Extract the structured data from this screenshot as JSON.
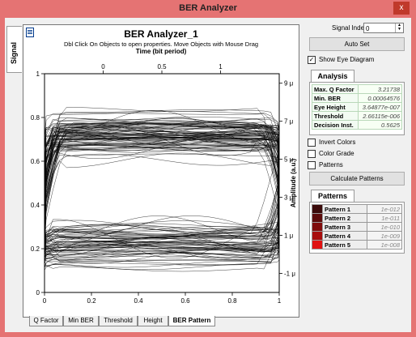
{
  "window": {
    "title": "BER Analyzer",
    "close_glyph": "x"
  },
  "side_tab": {
    "label": "Signal"
  },
  "plot": {
    "title": "BER Analyzer_1",
    "subtitle": "Dbl Click On Objects to open properties.  Move Objects with Mouse Drag",
    "top_axis_label": "Time (bit period)",
    "right_axis_label": "Amplitude (a.u.)",
    "top_ticks": [
      "0",
      "0.5",
      "1"
    ],
    "bottom_ticks": [
      "0",
      "0.2",
      "0.4",
      "0.6",
      "0.8",
      "1"
    ],
    "left_ticks": [
      "0",
      "0.2",
      "0.4",
      "0.6",
      "0.8",
      "1"
    ],
    "right_ticks": [
      "-1 μ",
      "1 μ",
      "3 μ",
      "5 μ",
      "7 μ",
      "9 μ"
    ],
    "trace_color": "#000000"
  },
  "bottom_tabs": [
    {
      "label": "Q Factor",
      "active": false
    },
    {
      "label": "Min BER",
      "active": false
    },
    {
      "label": "Threshold",
      "active": false
    },
    {
      "label": "Height",
      "active": false
    },
    {
      "label": "BER Pattern",
      "active": true
    }
  ],
  "controls": {
    "signal_index_label": "Signal Index",
    "signal_index_value": "0",
    "auto_set_label": "Auto Set",
    "show_eye_label": "Show Eye Diagram",
    "show_eye_checked": true
  },
  "analysis": {
    "tab_label": "Analysis",
    "rows": [
      {
        "key": "Max. Q Factor",
        "value": "3.21738"
      },
      {
        "key": "Min. BER",
        "value": "0.00064576"
      },
      {
        "key": "Eye Height",
        "value": "3.64877e-007"
      },
      {
        "key": "Threshold",
        "value": "2.66115e-006"
      },
      {
        "key": "Decision Inst.",
        "value": "0.5625"
      }
    ]
  },
  "options": {
    "invert_colors_label": "Invert Colors",
    "color_grade_label": "Color Grade",
    "patterns_label": "Patterns",
    "calculate_label": "Calculate Patterns"
  },
  "patterns": {
    "tab_label": "Patterns",
    "rows": [
      {
        "key": "Pattern 1",
        "value": "1e-012",
        "color": "#3b0a0a"
      },
      {
        "key": "Pattern 2",
        "value": "1e-011",
        "color": "#5c0b0b"
      },
      {
        "key": "Pattern 3",
        "value": "1e-010",
        "color": "#800c0c"
      },
      {
        "key": "Pattern 4",
        "value": "1e-009",
        "color": "#a80d0d"
      },
      {
        "key": "Pattern 5",
        "value": "1e-008",
        "color": "#e01010"
      }
    ]
  }
}
